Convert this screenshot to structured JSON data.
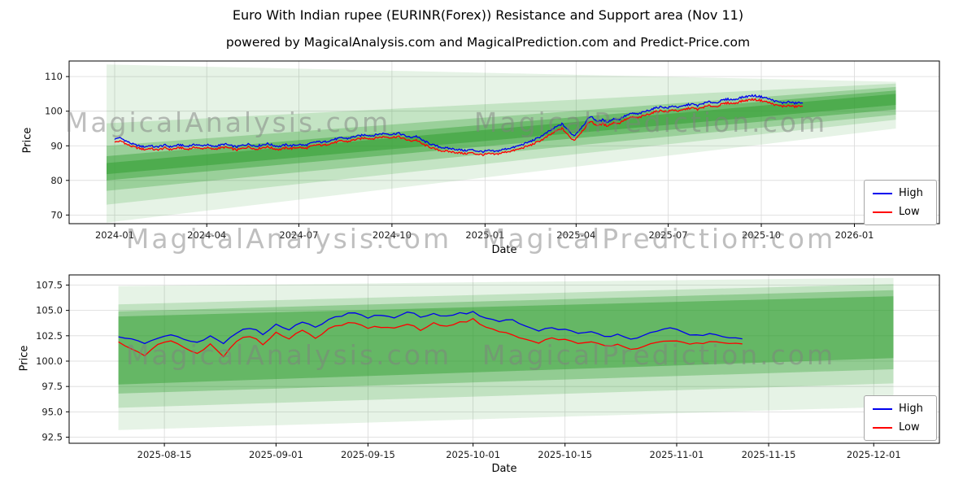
{
  "title": "Euro With Indian rupee (EURINR(Forex)) Resistance and Support area (Nov 11)",
  "subtitle": "powered by MagicalAnalysis.com and MagicalPrediction.com and Predict-Price.com",
  "watermarks": {
    "left": "MagicalAnalysis.com",
    "right": "MagicalPrediction.com"
  },
  "legend": {
    "high": "High",
    "low": "Low"
  },
  "colors": {
    "high": "#0000ee",
    "low": "#ff0000",
    "band": "#2f9e2f",
    "grid": "#d9d9d9",
    "spine": "#000000"
  },
  "chart_data": [
    {
      "id": "top",
      "type": "line",
      "xlabel": "Date",
      "ylabel": "Price",
      "xlim": [
        -45,
        815
      ],
      "ylim": [
        67.5,
        114.5
      ],
      "grid": true,
      "legend_position": "lower right",
      "noise_amp": 0.28,
      "xticks": [
        {
          "v": 0,
          "label": "2024-01"
        },
        {
          "v": 91,
          "label": "2024-04"
        },
        {
          "v": 182,
          "label": "2024-07"
        },
        {
          "v": 274,
          "label": "2024-10"
        },
        {
          "v": 366,
          "label": "2025-01"
        },
        {
          "v": 456,
          "label": "2025-04"
        },
        {
          "v": 547,
          "label": "2025-07"
        },
        {
          "v": 639,
          "label": "2025-10"
        },
        {
          "v": 731,
          "label": "2026-01"
        }
      ],
      "yticks": [
        {
          "v": 70,
          "label": "70"
        },
        {
          "v": 80,
          "label": "80"
        },
        {
          "v": 90,
          "label": "90"
        },
        {
          "v": 100,
          "label": "100"
        },
        {
          "v": 110,
          "label": "110"
        }
      ],
      "series": [
        {
          "name": "High",
          "color_key": "high"
        },
        {
          "name": "Low",
          "color_key": "low"
        }
      ],
      "points": [
        [
          0,
          91.8,
          91.0
        ],
        [
          4,
          92.4,
          91.3
        ],
        [
          8,
          91.9,
          91.2
        ],
        [
          12,
          91.3,
          90.4
        ],
        [
          16,
          90.7,
          89.9
        ],
        [
          20,
          90.3,
          89.6
        ],
        [
          25,
          89.9,
          89.2
        ],
        [
          30,
          89.7,
          88.9
        ],
        [
          35,
          90.1,
          89.3
        ],
        [
          40,
          89.6,
          88.8
        ],
        [
          45,
          89.9,
          89.0
        ],
        [
          50,
          90.2,
          89.4
        ],
        [
          55,
          89.7,
          88.9
        ],
        [
          60,
          90.0,
          89.2
        ],
        [
          65,
          90.3,
          89.5
        ],
        [
          70,
          89.8,
          89.0
        ],
        [
          75,
          90.1,
          89.2
        ],
        [
          80,
          90.4,
          89.6
        ],
        [
          85,
          90.0,
          89.1
        ],
        [
          91,
          90.3,
          89.5
        ],
        [
          97,
          89.8,
          89.0
        ],
        [
          103,
          90.1,
          89.3
        ],
        [
          109,
          90.5,
          89.6
        ],
        [
          115,
          90.0,
          89.2
        ],
        [
          121,
          89.7,
          88.8
        ],
        [
          127,
          90.2,
          89.3
        ],
        [
          133,
          90.5,
          89.7
        ],
        [
          139,
          89.9,
          89.0
        ],
        [
          145,
          90.2,
          89.4
        ],
        [
          151,
          90.6,
          89.7
        ],
        [
          157,
          90.1,
          89.2
        ],
        [
          163,
          89.8,
          88.9
        ],
        [
          169,
          90.3,
          89.4
        ],
        [
          175,
          90.0,
          89.2
        ],
        [
          182,
          90.4,
          89.6
        ],
        [
          188,
          90.1,
          89.2
        ],
        [
          194,
          90.7,
          89.8
        ],
        [
          200,
          91.2,
          90.3
        ],
        [
          206,
          91.0,
          90.1
        ],
        [
          212,
          91.5,
          90.6
        ],
        [
          218,
          91.9,
          91.0
        ],
        [
          224,
          92.3,
          91.4
        ],
        [
          230,
          92.1,
          91.2
        ],
        [
          236,
          92.6,
          91.7
        ],
        [
          242,
          92.9,
          92.0
        ],
        [
          248,
          93.2,
          92.3
        ],
        [
          254,
          92.9,
          92.0
        ],
        [
          260,
          93.3,
          92.4
        ],
        [
          266,
          93.6,
          92.6
        ],
        [
          274,
          93.3,
          92.4
        ],
        [
          280,
          93.7,
          92.7
        ],
        [
          286,
          93.0,
          92.0
        ],
        [
          292,
          92.4,
          91.4
        ],
        [
          298,
          92.8,
          91.7
        ],
        [
          304,
          91.6,
          90.5
        ],
        [
          310,
          90.8,
          89.8
        ],
        [
          316,
          90.1,
          89.1
        ],
        [
          322,
          89.6,
          88.6
        ],
        [
          328,
          89.3,
          88.4
        ],
        [
          334,
          89.1,
          88.2
        ],
        [
          340,
          88.9,
          88.0
        ],
        [
          346,
          88.6,
          87.7
        ],
        [
          352,
          88.9,
          88.0
        ],
        [
          358,
          88.5,
          87.6
        ],
        [
          364,
          88.3,
          87.4
        ],
        [
          370,
          88.6,
          87.7
        ],
        [
          376,
          88.3,
          87.5
        ],
        [
          382,
          88.8,
          87.9
        ],
        [
          388,
          89.2,
          88.3
        ],
        [
          394,
          89.5,
          88.6
        ],
        [
          400,
          90.1,
          89.1
        ],
        [
          406,
          90.7,
          89.7
        ],
        [
          412,
          91.4,
          90.3
        ],
        [
          418,
          92.2,
          91.1
        ],
        [
          424,
          93.2,
          92.0
        ],
        [
          430,
          94.3,
          93.1
        ],
        [
          436,
          95.4,
          94.2
        ],
        [
          442,
          96.3,
          95.0
        ],
        [
          446,
          95.2,
          93.8
        ],
        [
          450,
          93.9,
          92.4
        ],
        [
          454,
          92.9,
          91.6
        ],
        [
          458,
          94.2,
          92.9
        ],
        [
          462,
          95.6,
          94.3
        ],
        [
          466,
          97.0,
          95.7
        ],
        [
          470,
          98.6,
          97.2
        ],
        [
          474,
          97.7,
          96.3
        ],
        [
          478,
          97.0,
          95.8
        ],
        [
          482,
          97.5,
          96.4
        ],
        [
          486,
          96.9,
          95.8
        ],
        [
          490,
          97.3,
          96.2
        ],
        [
          494,
          97.9,
          96.8
        ],
        [
          498,
          97.5,
          96.4
        ],
        [
          502,
          98.3,
          97.2
        ],
        [
          507,
          98.9,
          97.8
        ],
        [
          512,
          99.4,
          98.3
        ],
        [
          517,
          99.1,
          98.0
        ],
        [
          522,
          99.7,
          98.6
        ],
        [
          528,
          100.3,
          99.2
        ],
        [
          534,
          100.9,
          99.8
        ],
        [
          540,
          101.3,
          100.2
        ],
        [
          546,
          100.9,
          99.8
        ],
        [
          552,
          101.5,
          100.4
        ],
        [
          558,
          101.1,
          100.0
        ],
        [
          564,
          101.7,
          100.6
        ],
        [
          570,
          102.1,
          101.0
        ],
        [
          576,
          101.6,
          100.5
        ],
        [
          582,
          102.3,
          101.2
        ],
        [
          588,
          102.7,
          101.6
        ],
        [
          594,
          102.4,
          101.3
        ],
        [
          600,
          103.1,
          102.0
        ],
        [
          606,
          103.5,
          102.4
        ],
        [
          612,
          103.3,
          102.2
        ],
        [
          618,
          103.9,
          102.8
        ],
        [
          624,
          104.2,
          103.1
        ],
        [
          630,
          104.5,
          103.4
        ],
        [
          636,
          104.3,
          103.2
        ],
        [
          642,
          104.0,
          102.9
        ],
        [
          648,
          103.4,
          102.3
        ],
        [
          654,
          102.8,
          101.7
        ],
        [
          660,
          102.4,
          101.4
        ],
        [
          666,
          102.7,
          101.6
        ],
        [
          672,
          102.3,
          101.3
        ],
        [
          676,
          102.5,
          101.5
        ],
        [
          680,
          102.3,
          101.4
        ]
      ],
      "bands": [
        {
          "opacity": 0.12,
          "pts": [
            [
              -8,
              113.5
            ],
            [
              772,
              108.5
            ],
            [
              772,
              95.0
            ],
            [
              -8,
              67.8
            ]
          ]
        },
        {
          "opacity": 0.18,
          "pts": [
            [
              -8,
              96.5
            ],
            [
              772,
              108.0
            ],
            [
              772,
              97.5
            ],
            [
              -8,
              73.0
            ]
          ]
        },
        {
          "opacity": 0.28,
          "pts": [
            [
              -8,
              90.0
            ],
            [
              772,
              107.0
            ],
            [
              772,
              99.0
            ],
            [
              -8,
              77.0
            ]
          ]
        },
        {
          "opacity": 0.42,
          "pts": [
            [
              -8,
              87.0
            ],
            [
              772,
              106.0
            ],
            [
              772,
              100.5
            ],
            [
              -8,
              80.0
            ]
          ]
        },
        {
          "opacity": 0.5,
          "pts": [
            [
              -8,
              85.0
            ],
            [
              772,
              105.0
            ],
            [
              772,
              101.8
            ],
            [
              -8,
              81.8
            ]
          ]
        }
      ]
    },
    {
      "id": "bottom",
      "type": "line",
      "xlabel": "Date",
      "ylabel": "Price",
      "xlim": [
        577.5,
        710
      ],
      "ylim": [
        91.9,
        108.5
      ],
      "grid": true,
      "legend_position": "lower right",
      "noise_amp": 0.1,
      "xticks": [
        {
          "v": 592,
          "label": "2025-08-15"
        },
        {
          "v": 609,
          "label": "2025-09-01"
        },
        {
          "v": 623,
          "label": "2025-09-15"
        },
        {
          "v": 639,
          "label": "2025-10-01"
        },
        {
          "v": 653,
          "label": "2025-10-15"
        },
        {
          "v": 670,
          "label": "2025-11-01"
        },
        {
          "v": 684,
          "label": "2025-11-15"
        },
        {
          "v": 700,
          "label": "2025-12-01"
        }
      ],
      "yticks": [
        {
          "v": 92.5,
          "label": "92.5"
        },
        {
          "v": 95.0,
          "label": "95.0"
        },
        {
          "v": 97.5,
          "label": "97.5"
        },
        {
          "v": 100.0,
          "label": "100.0"
        },
        {
          "v": 102.5,
          "label": "102.5"
        },
        {
          "v": 105.0,
          "label": "105.0"
        },
        {
          "v": 107.5,
          "label": "107.5"
        }
      ],
      "series": [
        {
          "name": "High",
          "color_key": "high"
        },
        {
          "name": "Low",
          "color_key": "low"
        }
      ],
      "points": [
        [
          585,
          102.4,
          101.9
        ],
        [
          587,
          102.1,
          101.1
        ],
        [
          589,
          101.8,
          100.6
        ],
        [
          591,
          102.3,
          101.7
        ],
        [
          593,
          102.6,
          102.0
        ],
        [
          595,
          102.2,
          101.4
        ],
        [
          597,
          101.9,
          100.8
        ],
        [
          599,
          102.4,
          101.6
        ],
        [
          601,
          101.7,
          100.4
        ],
        [
          603,
          102.8,
          102.0
        ],
        [
          605,
          103.3,
          102.5
        ],
        [
          607,
          102.7,
          101.7
        ],
        [
          609,
          103.6,
          102.8
        ],
        [
          611,
          103.1,
          102.2
        ],
        [
          613,
          103.9,
          103.1
        ],
        [
          615,
          103.4,
          102.3
        ],
        [
          617,
          104.1,
          103.2
        ],
        [
          619,
          104.5,
          103.6
        ],
        [
          621,
          104.8,
          103.8
        ],
        [
          623,
          104.3,
          103.3
        ],
        [
          625,
          104.6,
          103.4
        ],
        [
          627,
          104.2,
          103.2
        ],
        [
          629,
          104.9,
          103.7
        ],
        [
          631,
          104.4,
          103.1
        ],
        [
          633,
          104.6,
          103.7
        ],
        [
          635,
          104.5,
          103.5
        ],
        [
          637,
          104.7,
          103.8
        ],
        [
          639,
          104.8,
          104.1
        ],
        [
          641,
          104.3,
          103.4
        ],
        [
          643,
          103.9,
          102.9
        ],
        [
          645,
          104.1,
          102.6
        ],
        [
          647,
          103.4,
          102.1
        ],
        [
          649,
          103.0,
          101.8
        ],
        [
          651,
          103.3,
          102.3
        ],
        [
          653,
          103.1,
          102.1
        ],
        [
          655,
          102.7,
          101.7
        ],
        [
          657,
          102.9,
          101.9
        ],
        [
          659,
          102.4,
          101.5
        ],
        [
          661,
          102.6,
          101.6
        ],
        [
          663,
          102.2,
          101.2
        ],
        [
          665,
          102.5,
          101.4
        ],
        [
          667,
          103.0,
          101.9
        ],
        [
          669,
          103.3,
          102.0
        ],
        [
          671,
          102.8,
          101.8
        ],
        [
          673,
          102.5,
          101.7
        ],
        [
          675,
          102.7,
          101.9
        ],
        [
          677,
          102.4,
          101.8
        ],
        [
          680,
          102.2,
          101.7
        ]
      ],
      "bands": [
        {
          "opacity": 0.12,
          "pts": [
            [
              585,
              107.4
            ],
            [
              703,
              108.2
            ],
            [
              703,
              95.5
            ],
            [
              585,
              93.2
            ]
          ]
        },
        {
          "opacity": 0.2,
          "pts": [
            [
              585,
              105.6
            ],
            [
              703,
              107.6
            ],
            [
              703,
              97.8
            ],
            [
              585,
              95.4
            ]
          ]
        },
        {
          "opacity": 0.32,
          "pts": [
            [
              585,
              104.9
            ],
            [
              703,
              107.0
            ],
            [
              703,
              99.2
            ],
            [
              585,
              96.8
            ]
          ]
        },
        {
          "opacity": 0.45,
          "pts": [
            [
              585,
              104.4
            ],
            [
              703,
              106.4
            ],
            [
              703,
              100.3
            ],
            [
              585,
              97.7
            ]
          ]
        }
      ]
    }
  ]
}
